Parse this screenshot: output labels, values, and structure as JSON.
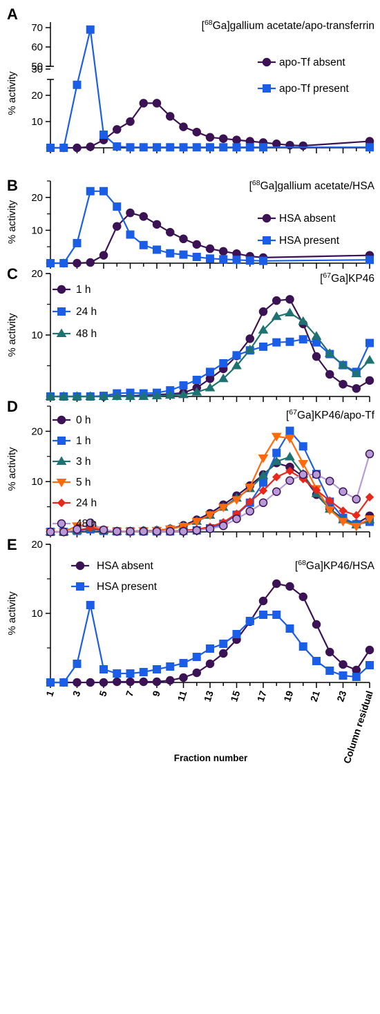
{
  "figure": {
    "x_tick_labels": [
      "1",
      "3",
      "5",
      "7",
      "9",
      "11",
      "13",
      "15",
      "17",
      "19",
      "21",
      "23",
      "Column residual"
    ],
    "x_title": "Fraction number"
  },
  "colors": {
    "purple": "#3b1254",
    "blue": "#1a5ee8",
    "teal": "#1f7272",
    "orange": "#ff6a0d",
    "red": "#e8281b",
    "lavender": "#b89ad6"
  },
  "chart_data": [
    {
      "type": "line",
      "panel": "A",
      "title_pre": "[",
      "title_sup": "68",
      "title_post": "Ga]gallium acetate/apo-transferrin",
      "ylabel": "% activity",
      "broken_axis": true,
      "lower_ylim": [
        0,
        30
      ],
      "lower_yticks": [
        10,
        20,
        30
      ],
      "upper_ylim": [
        50,
        75
      ],
      "upper_yticks": [
        50,
        60,
        70
      ],
      "xlim": [
        1,
        25
      ],
      "legend_position": "top-right",
      "series": [
        {
          "name": "apo-Tf absent",
          "color": "purple",
          "marker": "circle",
          "x": [
            1,
            2,
            3,
            4,
            5,
            6,
            7,
            8,
            9,
            10,
            11,
            12,
            13,
            14,
            15,
            16,
            17,
            18,
            19,
            20,
            25
          ],
          "y": [
            0,
            0,
            0,
            0.4,
            3,
            7,
            10,
            17,
            17,
            12,
            8,
            6,
            4,
            3.5,
            3,
            2.5,
            2,
            1.5,
            1,
            0.8,
            2.5
          ]
        },
        {
          "name": "apo-Tf present",
          "color": "blue",
          "marker": "square",
          "x": [
            1,
            2,
            3,
            4,
            5,
            6,
            7,
            8,
            9,
            10,
            11,
            12,
            13,
            14,
            15,
            16,
            17,
            25
          ],
          "y": [
            0,
            0,
            24,
            69,
            5,
            0.5,
            0.2,
            0.2,
            0.2,
            0.2,
            0.2,
            0.2,
            0.2,
            0.2,
            0.2,
            0.2,
            0.2,
            0.2
          ]
        }
      ]
    },
    {
      "type": "line",
      "panel": "B",
      "title_pre": "[",
      "title_sup": "68",
      "title_post": "Ga]gallium acetate/HSA",
      "ylabel": "% activity",
      "ylim": [
        0,
        25
      ],
      "yticks": [
        10,
        20
      ],
      "xlim": [
        1,
        25
      ],
      "legend_position": "top-right",
      "series": [
        {
          "name": "HSA absent",
          "color": "purple",
          "marker": "circle",
          "x": [
            1,
            2,
            3,
            4,
            5,
            6,
            7,
            8,
            9,
            10,
            11,
            12,
            13,
            14,
            15,
            16,
            17,
            25
          ],
          "y": [
            0,
            0,
            0,
            0.2,
            2.4,
            11.2,
            15.3,
            14.2,
            11.8,
            9.4,
            7.4,
            5.7,
            4.4,
            3.6,
            2.9,
            2.1,
            1.7,
            2.4
          ]
        },
        {
          "name": "HSA present",
          "color": "blue",
          "marker": "square",
          "x": [
            1,
            2,
            3,
            4,
            5,
            6,
            7,
            8,
            9,
            10,
            11,
            12,
            13,
            14,
            15,
            16,
            17,
            25
          ],
          "y": [
            0,
            0,
            6.1,
            21.9,
            21.9,
            17.2,
            8.7,
            5.5,
            4.1,
            3.0,
            2.6,
            1.9,
            1.4,
            1.2,
            1.0,
            0.8,
            0.7,
            1.0
          ]
        }
      ]
    },
    {
      "type": "line",
      "panel": "C",
      "title_pre": "[",
      "title_sup": "67",
      "title_post": "Ga]KP46",
      "ylabel": "% activity",
      "ylim": [
        0,
        20
      ],
      "yticks": [
        10,
        20
      ],
      "xlim": [
        1,
        25
      ],
      "legend_position": "top-left",
      "series": [
        {
          "name": "1 h",
          "color": "purple",
          "marker": "circle",
          "x": [
            1,
            2,
            3,
            4,
            5,
            6,
            7,
            8,
            9,
            10,
            11,
            12,
            13,
            14,
            15,
            16,
            17,
            18,
            19,
            20,
            21,
            22,
            23,
            24,
            25
          ],
          "y": [
            0,
            0,
            0,
            0,
            0,
            0.1,
            0.1,
            0.2,
            0.3,
            0.4,
            0.6,
            1.4,
            2.9,
            4.5,
            6.6,
            9.4,
            13.8,
            15.6,
            15.8,
            11.8,
            6.5,
            3.6,
            2.0,
            1.3,
            2.6
          ]
        },
        {
          "name": "24 h",
          "color": "blue",
          "marker": "square",
          "x": [
            1,
            2,
            3,
            4,
            5,
            6,
            7,
            8,
            9,
            10,
            11,
            12,
            13,
            14,
            15,
            16,
            17,
            18,
            19,
            20,
            21,
            22,
            23,
            24,
            25
          ],
          "y": [
            0,
            0,
            0,
            0,
            0.1,
            0.5,
            0.6,
            0.5,
            0.6,
            1.0,
            1.8,
            2.7,
            4.0,
            5.4,
            6.7,
            7.5,
            8.1,
            8.8,
            8.9,
            9.3,
            8.8,
            6.9,
            5.1,
            4.0,
            8.7
          ]
        },
        {
          "name": "48 h",
          "color": "teal",
          "marker": "triangle",
          "x": [
            1,
            2,
            3,
            4,
            5,
            6,
            7,
            8,
            9,
            10,
            11,
            12,
            13,
            14,
            15,
            16,
            17,
            18,
            19,
            20,
            21,
            22,
            23,
            24,
            25
          ],
          "y": [
            0,
            0,
            0,
            0,
            0,
            0,
            0,
            0,
            0.1,
            0.2,
            0.3,
            0.7,
            1.4,
            2.9,
            5.0,
            7.6,
            10.8,
            13.0,
            13.6,
            12.2,
            9.8,
            7.0,
            5.1,
            3.7,
            5.9
          ]
        }
      ]
    },
    {
      "type": "line",
      "panel": "D",
      "title_pre": "[",
      "title_sup": "67",
      "title_post": "Ga]KP46/apo-Tf",
      "ylabel": "% activity",
      "ylim": [
        0,
        25
      ],
      "yticks": [
        10,
        20
      ],
      "xlim": [
        1,
        25
      ],
      "legend_position": "top-left",
      "series": [
        {
          "name": "0 h",
          "color": "purple",
          "marker": "circle",
          "x": [
            1,
            2,
            3,
            4,
            5,
            6,
            7,
            8,
            9,
            10,
            11,
            12,
            13,
            14,
            15,
            16,
            17,
            18,
            19,
            20,
            21,
            22,
            23,
            24,
            25
          ],
          "y": [
            0,
            0,
            0.3,
            0.8,
            0.3,
            0.1,
            0.1,
            0.2,
            0.3,
            0.6,
            1.3,
            2.4,
            3.7,
            5.4,
            7.2,
            9.2,
            11.4,
            13.7,
            12.9,
            11.0,
            7.4,
            4.6,
            2.6,
            1.6,
            3.2
          ]
        },
        {
          "name": "1 h",
          "color": "blue",
          "marker": "square",
          "x": [
            1,
            2,
            3,
            4,
            5,
            6,
            7,
            8,
            9,
            10,
            11,
            12,
            13,
            14,
            15,
            16,
            17,
            18,
            19,
            20,
            21,
            22,
            23,
            24,
            25
          ],
          "y": [
            0,
            0,
            0.2,
            0.5,
            0.2,
            0.1,
            0.1,
            0.1,
            0.1,
            0.1,
            0.2,
            0.3,
            0.7,
            1.6,
            3.4,
            5.8,
            9.8,
            15.7,
            20.1,
            17.0,
            11.5,
            6.0,
            2.8,
            1.5,
            2.0
          ]
        },
        {
          "name": "3 h",
          "color": "teal",
          "marker": "triangle",
          "x": [
            1,
            2,
            3,
            4,
            5,
            6,
            7,
            8,
            9,
            10,
            11,
            12,
            13,
            14,
            15,
            16,
            17,
            18,
            19,
            20,
            21,
            22,
            23,
            24,
            25
          ],
          "y": [
            0,
            0,
            0.3,
            0.8,
            0.3,
            0.1,
            0.1,
            0.2,
            0.3,
            0.6,
            1.1,
            2.1,
            3.3,
            4.9,
            6.7,
            8.6,
            11.2,
            14.0,
            14.9,
            11.5,
            7.6,
            4.5,
            2.4,
            1.4,
            2.4
          ]
        },
        {
          "name": "5 h",
          "color": "orange",
          "marker": "triangle-down",
          "x": [
            1,
            2,
            3,
            4,
            5,
            6,
            7,
            8,
            9,
            10,
            11,
            12,
            13,
            14,
            15,
            16,
            17,
            18,
            19,
            20,
            21,
            22,
            23,
            24,
            25
          ],
          "y": [
            0,
            0,
            1.2,
            1.2,
            0.4,
            0.1,
            0.1,
            0.2,
            0.3,
            0.6,
            1.1,
            2.1,
            3.4,
            4.9,
            6.4,
            8.9,
            14.7,
            19.0,
            18.6,
            13.6,
            8.6,
            4.4,
            2.1,
            1.1,
            2.6
          ]
        },
        {
          "name": "24 h",
          "color": "red",
          "marker": "diamond",
          "x": [
            1,
            2,
            3,
            4,
            5,
            6,
            7,
            8,
            9,
            10,
            11,
            12,
            13,
            14,
            15,
            16,
            17,
            18,
            19,
            20,
            21,
            22,
            23,
            24,
            25
          ],
          "y": [
            0,
            0,
            0.3,
            0.8,
            0.3,
            0.1,
            0.1,
            0.1,
            0.1,
            0.1,
            0.3,
            0.5,
            1.0,
            1.9,
            3.6,
            6.0,
            8.2,
            10.9,
            12.1,
            10.5,
            8.3,
            6.2,
            4.2,
            3.3,
            6.9
          ]
        },
        {
          "name": "48 h",
          "color": "lavender",
          "marker": "circle",
          "x": [
            1,
            2,
            3,
            4,
            5,
            6,
            7,
            8,
            9,
            10,
            11,
            12,
            13,
            14,
            15,
            16,
            17,
            18,
            19,
            20,
            21,
            22,
            23,
            24,
            25
          ],
          "y": [
            0,
            0,
            0.5,
            1.8,
            0.4,
            0.1,
            0.1,
            0.1,
            0.1,
            0.1,
            0.1,
            0.3,
            0.6,
            1.2,
            2.6,
            4.1,
            5.8,
            8.0,
            10.2,
            11.4,
            11.4,
            10.1,
            8.0,
            6.5,
            15.5
          ]
        }
      ]
    },
    {
      "type": "line",
      "panel": "E",
      "title_pre": "[",
      "title_sup": "68",
      "title_post": "Ga]KP46/HSA",
      "ylabel": "% activity",
      "ylim": [
        0,
        20
      ],
      "yticks": [
        10,
        20
      ],
      "xlim": [
        1,
        25
      ],
      "legend_position": "top-left",
      "series": [
        {
          "name": "HSA absent",
          "color": "purple",
          "marker": "circle",
          "x": [
            1,
            2,
            3,
            4,
            5,
            6,
            7,
            8,
            9,
            10,
            11,
            12,
            13,
            14,
            15,
            16,
            17,
            18,
            19,
            20,
            21,
            22,
            23,
            24,
            25
          ],
          "y": [
            0,
            0,
            0,
            0,
            0,
            0.1,
            0.1,
            0.1,
            0.1,
            0.3,
            0.7,
            1.4,
            2.7,
            4.2,
            6.2,
            8.8,
            11.8,
            14.3,
            13.9,
            12.4,
            8.4,
            4.4,
            2.6,
            1.8,
            4.7
          ]
        },
        {
          "name": "HSA present",
          "color": "blue",
          "marker": "square",
          "x": [
            1,
            2,
            3,
            4,
            5,
            6,
            7,
            8,
            9,
            10,
            11,
            12,
            13,
            14,
            15,
            16,
            17,
            18,
            19,
            20,
            21,
            22,
            23,
            24,
            25
          ],
          "y": [
            0,
            0,
            2.7,
            11.2,
            1.9,
            1.3,
            1.3,
            1.5,
            1.9,
            2.3,
            2.8,
            3.7,
            4.9,
            5.6,
            7.0,
            8.9,
            9.8,
            9.8,
            7.8,
            5.2,
            3.1,
            1.7,
            1.0,
            0.8,
            2.5
          ]
        }
      ]
    }
  ]
}
